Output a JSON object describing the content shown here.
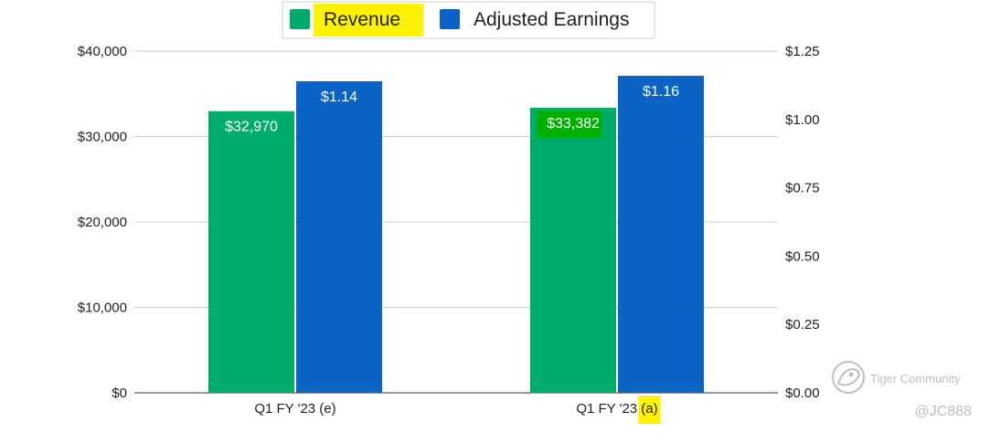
{
  "chart_data": {
    "type": "bar",
    "categories": [
      "Q1 FY '23 (e)",
      "Q1 FY '23 (a)"
    ],
    "series": [
      {
        "name": "Revenue",
        "axis": "left",
        "color": "#00ac6b",
        "values": [
          32970,
          33382
        ],
        "labels": [
          "$32,970",
          "$33,382"
        ]
      },
      {
        "name": "Adjusted Earnings",
        "axis": "right",
        "color": "#0b63c5",
        "values": [
          1.14,
          1.16
        ],
        "labels": [
          "$1.14",
          "$1.16"
        ]
      }
    ],
    "y_left": {
      "min": 0,
      "max": 40000,
      "ticks": [
        0,
        10000,
        20000,
        30000,
        40000
      ],
      "tick_labels": [
        "$0",
        "$10,000",
        "$20,000",
        "$30,000",
        "$40,000"
      ]
    },
    "y_right": {
      "min": 0,
      "max": 1.25,
      "ticks": [
        0,
        0.25,
        0.5,
        0.75,
        1.0,
        1.25
      ],
      "tick_labels": [
        "$0.00",
        "$0.25",
        "$0.50",
        "$0.75",
        "$1.00",
        "$1.25"
      ]
    },
    "grid": true,
    "legend_position": "top-center",
    "highlights": {
      "legend_revenue_color": "#fff200",
      "category_suffix_text": "(a)",
      "category_suffix_color": "#fff200",
      "label_box_color": "#00b000",
      "label_text_color": "#fff200"
    }
  },
  "watermark": {
    "brand": "Tiger Community",
    "handle": "@JC888"
  }
}
